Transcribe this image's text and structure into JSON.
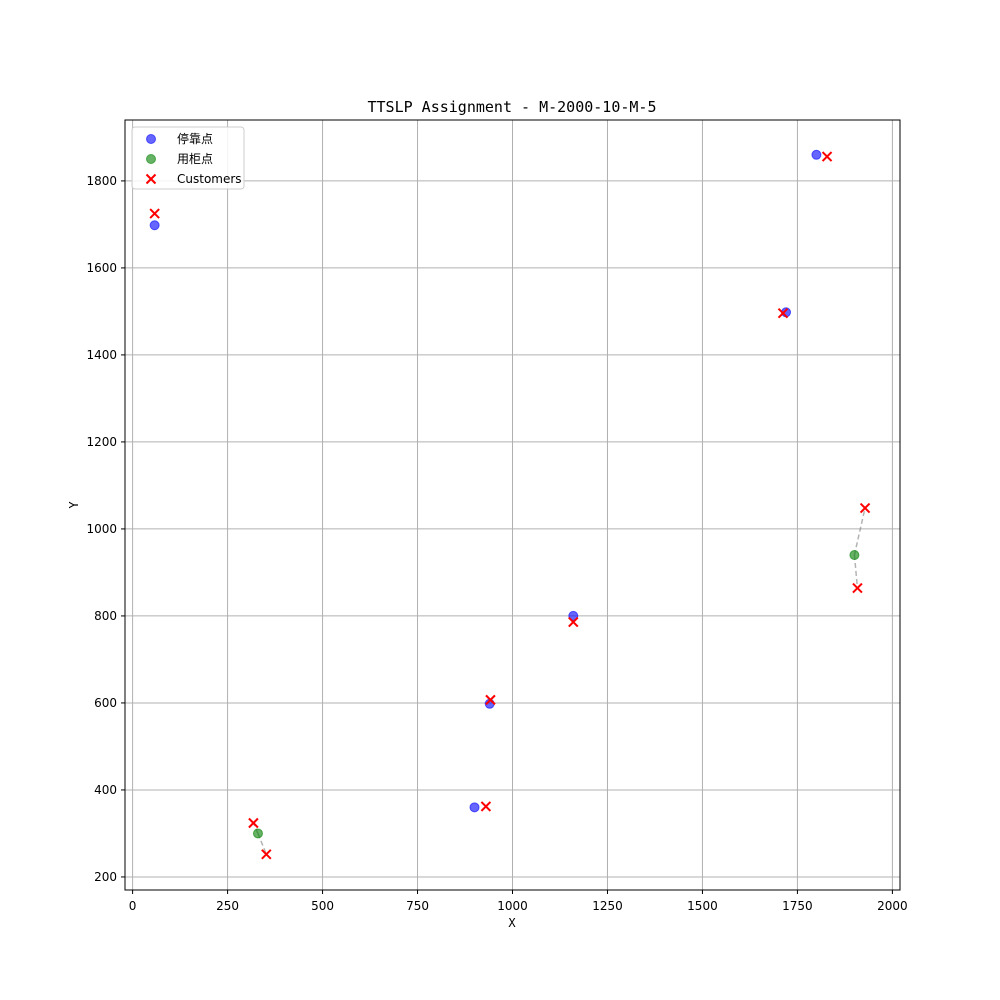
{
  "chart_data": {
    "type": "scatter",
    "title": "TTSLP Assignment - M-2000-10-M-5",
    "xlabel": "X",
    "ylabel": "Y",
    "xlim": [
      -20,
      2020
    ],
    "ylim": [
      170,
      1940
    ],
    "xticks": [
      0,
      250,
      500,
      750,
      1000,
      1250,
      1500,
      1750,
      2000
    ],
    "yticks": [
      200,
      400,
      600,
      800,
      1000,
      1200,
      1400,
      1600,
      1800
    ],
    "grid": true,
    "legend_position": "top-left",
    "series": [
      {
        "name": "停靠点",
        "marker": "circle",
        "color": "#0000ff",
        "alpha": 0.6,
        "points": [
          [
            58,
            1698
          ],
          [
            1800,
            1860
          ],
          [
            1720,
            1498
          ],
          [
            1160,
            800
          ],
          [
            940,
            598
          ],
          [
            900,
            360
          ]
        ]
      },
      {
        "name": "用柜点",
        "marker": "circle",
        "color": "#008000",
        "alpha": 0.6,
        "points": [
          [
            330,
            300
          ],
          [
            1900,
            940
          ]
        ]
      },
      {
        "name": "Customers",
        "marker": "x",
        "color": "#ff0000",
        "points": [
          [
            58,
            1725
          ],
          [
            1828,
            1856
          ],
          [
            1712,
            1496
          ],
          [
            1160,
            786
          ],
          [
            942,
            607
          ],
          [
            930,
            362
          ],
          [
            318,
            324
          ],
          [
            352,
            252
          ],
          [
            1928,
            1048
          ],
          [
            1908,
            864
          ]
        ]
      }
    ],
    "assignment_lines": [
      [
        [
          330,
          300
        ],
        [
          318,
          324
        ]
      ],
      [
        [
          330,
          300
        ],
        [
          352,
          252
        ]
      ],
      [
        [
          1900,
          940
        ],
        [
          1928,
          1048
        ]
      ],
      [
        [
          1900,
          940
        ],
        [
          1908,
          864
        ]
      ]
    ],
    "assignment_line_color": "#808080"
  }
}
